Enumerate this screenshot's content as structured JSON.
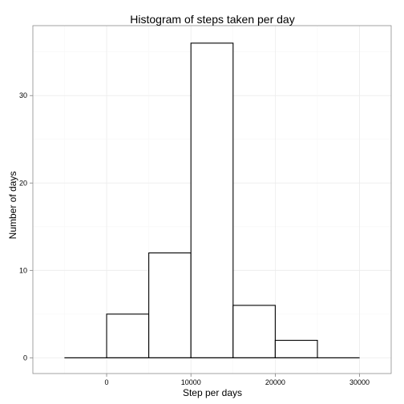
{
  "chart_data": {
    "type": "bar",
    "title": "Histogram of steps taken per day",
    "xlabel": "Step per days",
    "ylabel": "Number of days",
    "bin_width": 5000,
    "bins": [
      {
        "start": -5000,
        "end": 0,
        "count": 0
      },
      {
        "start": 0,
        "end": 5000,
        "count": 5
      },
      {
        "start": 5000,
        "end": 10000,
        "count": 12
      },
      {
        "start": 10000,
        "end": 15000,
        "count": 36
      },
      {
        "start": 15000,
        "end": 20000,
        "count": 6
      },
      {
        "start": 20000,
        "end": 25000,
        "count": 2
      },
      {
        "start": 25000,
        "end": 30000,
        "count": 0
      }
    ],
    "xlim": [
      -8750,
      33750
    ],
    "ylim": [
      -1.8,
      38.0
    ],
    "x_ticks": [
      0,
      10000,
      20000,
      30000
    ],
    "y_ticks": [
      0,
      10,
      20,
      30
    ],
    "grid": true,
    "bar_fill": "#ffffff",
    "bar_stroke": "#000000"
  }
}
